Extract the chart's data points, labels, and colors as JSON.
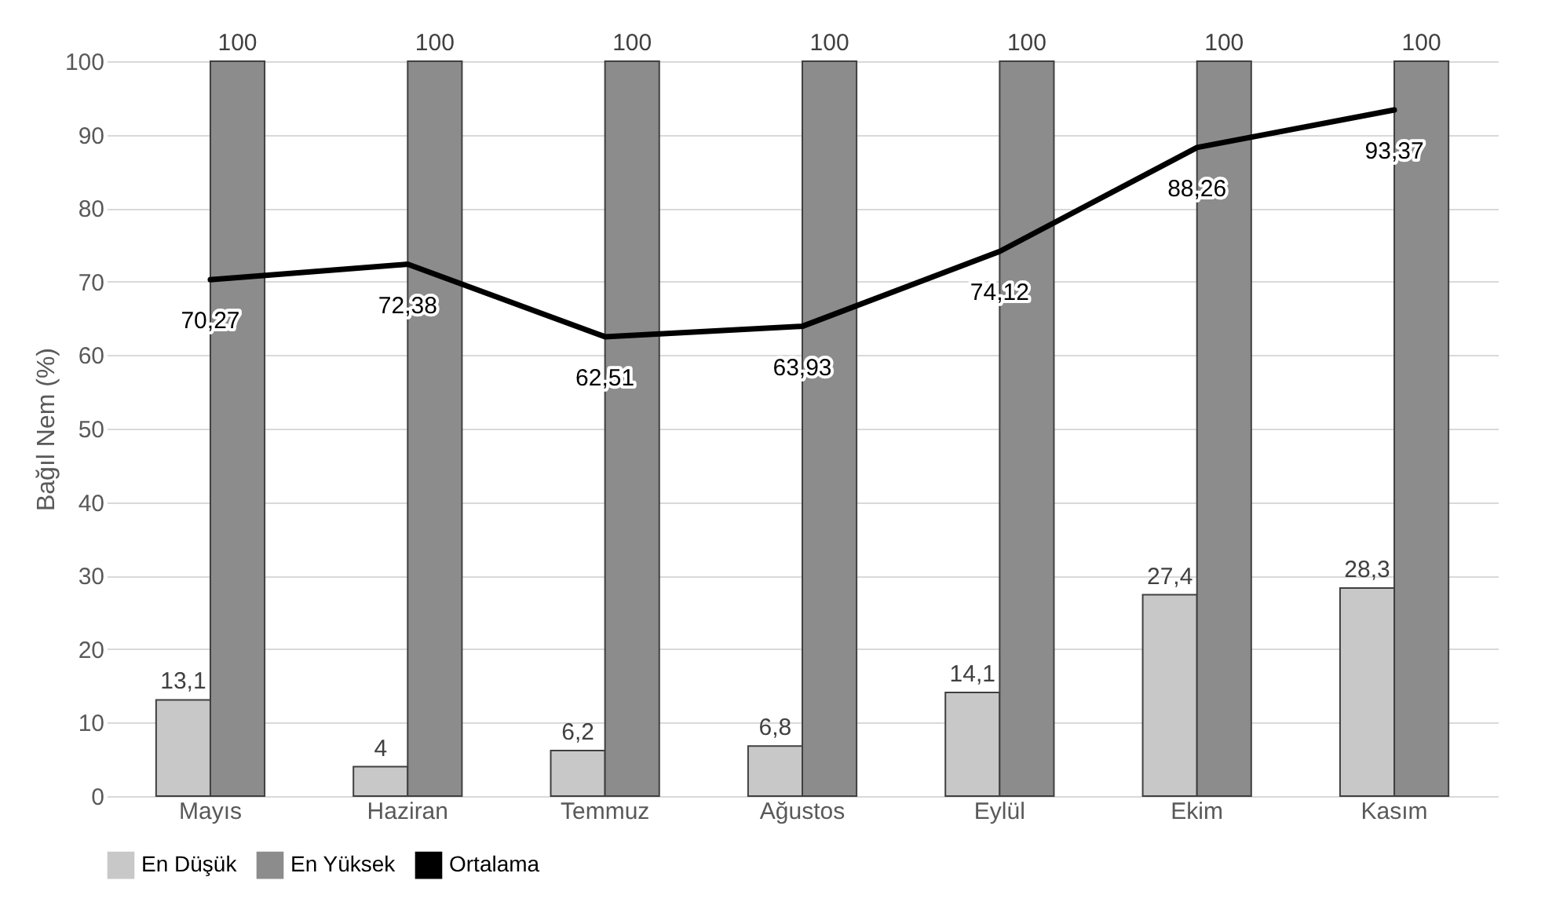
{
  "chart_data": {
    "type": "bar",
    "ylabel": "Bağıl Nem (%)",
    "categories": [
      "Mayıs",
      "Haziran",
      "Temmuz",
      "Ağustos",
      "Eylül",
      "Ekim",
      "Kasım"
    ],
    "series": [
      {
        "name": "En Düşük",
        "color": "#c8c8c8",
        "values": [
          13.1,
          4,
          6.2,
          6.8,
          14.1,
          27.4,
          28.3
        ],
        "value_labels": [
          "13,1",
          "4",
          "6,2",
          "6,8",
          "14,1",
          "27,4",
          "28,3"
        ]
      },
      {
        "name": "En Yüksek",
        "color": "#8c8c8c",
        "values": [
          100,
          100,
          100,
          100,
          100,
          100,
          100
        ],
        "value_labels": [
          "100",
          "100",
          "100",
          "100",
          "100",
          "100",
          "100"
        ]
      },
      {
        "name": "Ortalama",
        "type": "line",
        "color": "#000000",
        "values": [
          70.27,
          72.38,
          62.51,
          63.93,
          74.12,
          88.26,
          93.37
        ],
        "value_labels": [
          "70,27",
          "72,38",
          "62,51",
          "63,93",
          "74,12",
          "88,26",
          "93,37"
        ]
      }
    ],
    "ylim": [
      0,
      100
    ],
    "yticks": [
      0,
      10,
      20,
      30,
      40,
      50,
      60,
      70,
      80,
      90,
      100
    ],
    "grid": "y",
    "legend": "bottom",
    "marker": "none",
    "line_style": "solid"
  }
}
